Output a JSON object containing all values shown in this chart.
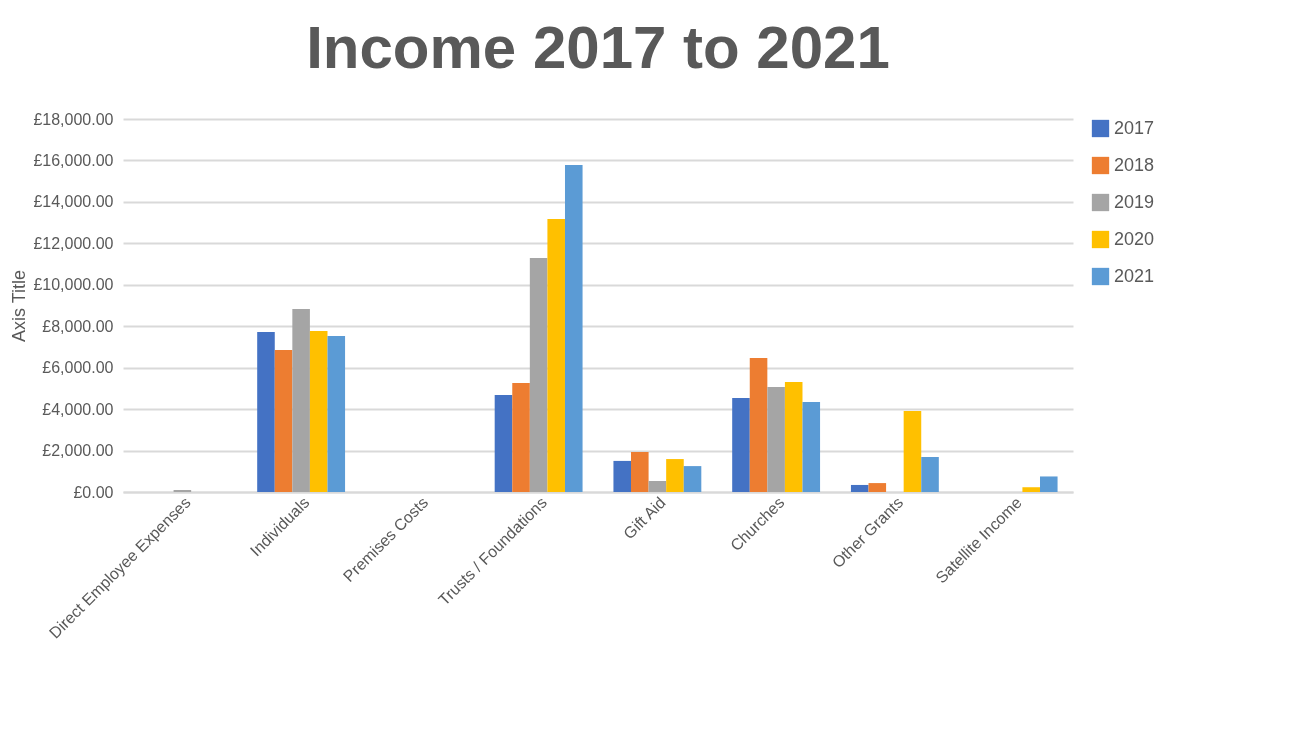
{
  "chart_data": {
    "type": "bar",
    "title": "Income 2017 to 2021",
    "ylabel": "Axis Title",
    "categories": [
      "Direct Employee Expenses",
      "Individuals",
      "Premises Costs",
      "Trusts / Foundations",
      "Gift Aid",
      "Churches",
      "Other Grants",
      "Satellite Income"
    ],
    "series": [
      {
        "name": "2017",
        "color": "#4472c4",
        "values": [
          0,
          7720,
          0,
          4680,
          1500,
          4540,
          340,
          0
        ]
      },
      {
        "name": "2018",
        "color": "#ed7d31",
        "values": [
          0,
          6850,
          0,
          5260,
          1930,
          6470,
          430,
          0
        ]
      },
      {
        "name": "2019",
        "color": "#a5a5a5",
        "values": [
          100,
          8830,
          0,
          11290,
          530,
          5070,
          0,
          0
        ]
      },
      {
        "name": "2020",
        "color": "#ffc000",
        "values": [
          0,
          7770,
          0,
          13180,
          1590,
          5310,
          3910,
          230
        ]
      },
      {
        "name": "2021",
        "color": "#5b9bd5",
        "values": [
          0,
          7530,
          0,
          15780,
          1250,
          4340,
          1690,
          750
        ]
      }
    ],
    "ylim": [
      0,
      18000
    ],
    "yticks": [
      {
        "value": 0,
        "label": "£0.00"
      },
      {
        "value": 2000,
        "label": "£2,000.00"
      },
      {
        "value": 4000,
        "label": "£4,000.00"
      },
      {
        "value": 6000,
        "label": "£6,000.00"
      },
      {
        "value": 8000,
        "label": "£8,000.00"
      },
      {
        "value": 10000,
        "label": "£10,000.00"
      },
      {
        "value": 12000,
        "label": "£12,000.00"
      },
      {
        "value": 14000,
        "label": "£14,000.00"
      },
      {
        "value": 16000,
        "label": "£16,000.00"
      },
      {
        "value": 18000,
        "label": "£18,000.00"
      }
    ],
    "grid": "y",
    "legend": "right"
  }
}
